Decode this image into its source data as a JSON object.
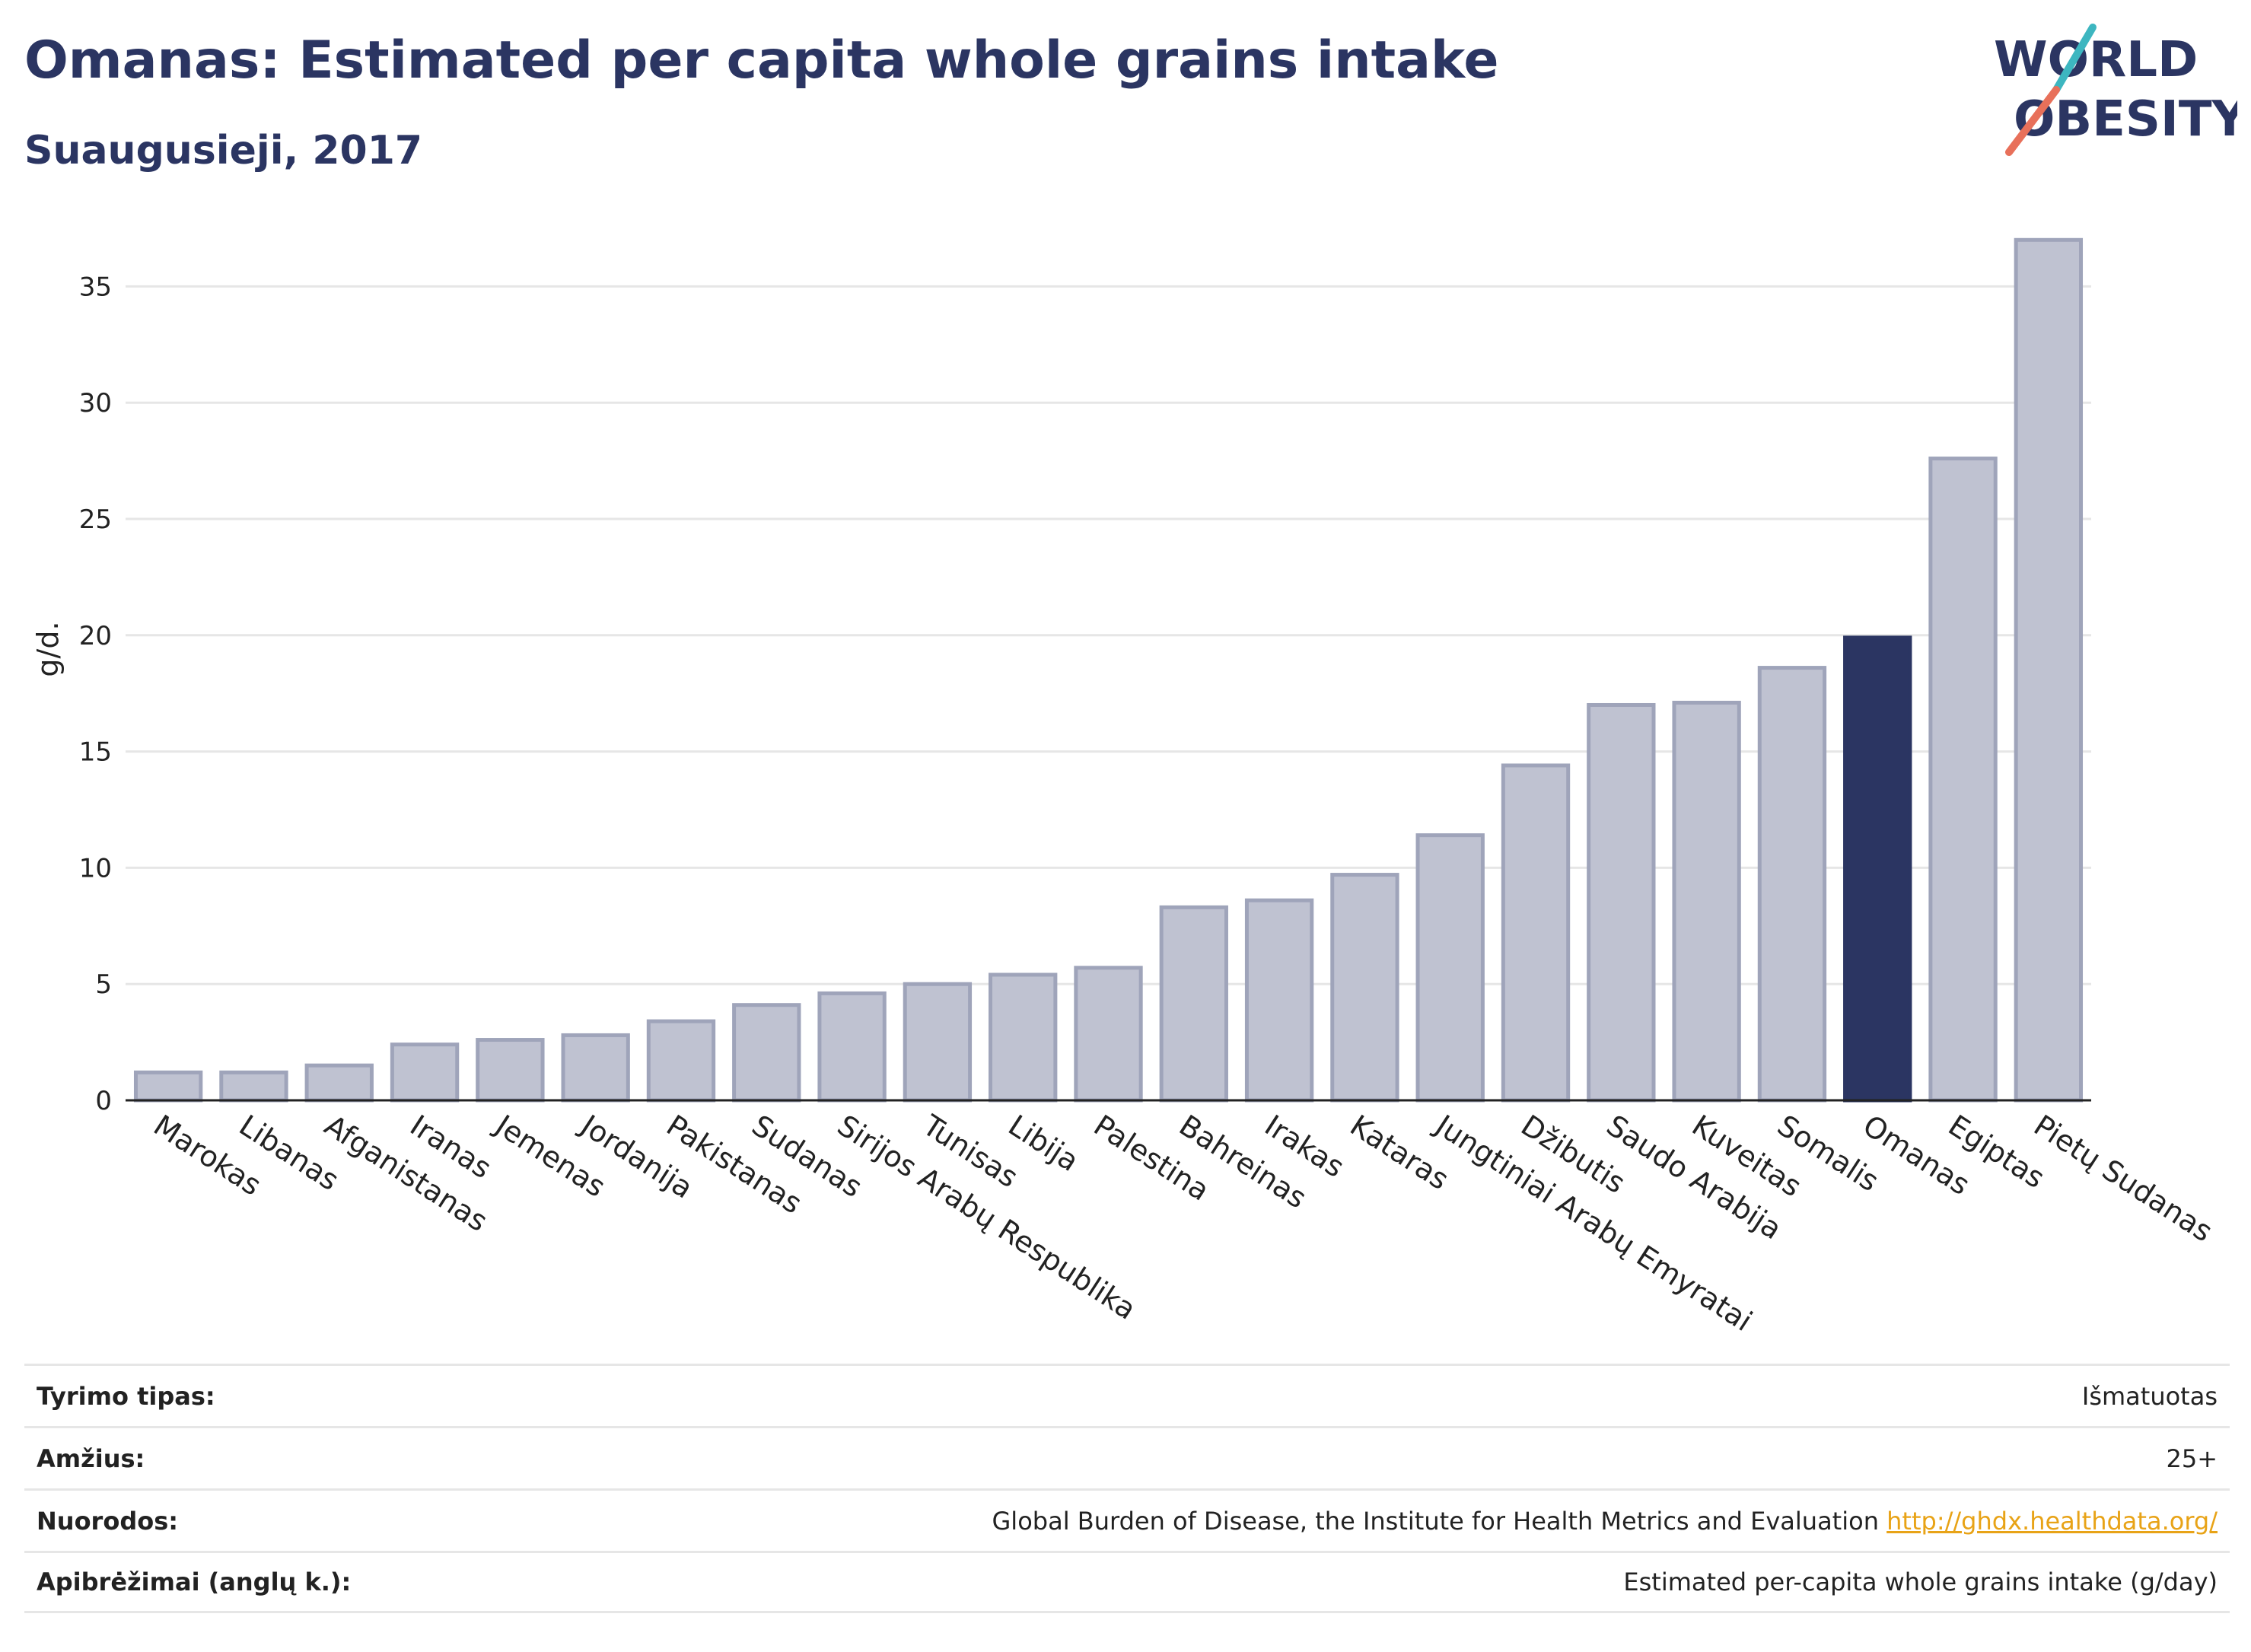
{
  "header": {
    "title": "Omanas: Estimated per capita whole grains intake",
    "subtitle": "Suaugusieji, 2017"
  },
  "logo": {
    "line1": "WORLD",
    "line2": "OBESITY",
    "accent_color": "#e8705a",
    "accent_color2": "#3db6c0"
  },
  "chart_data": {
    "type": "bar",
    "ylabel": "g/d.",
    "ylim": [
      0,
      37.5
    ],
    "yticks": [
      0,
      5,
      10,
      15,
      20,
      25,
      30,
      35
    ],
    "grid": true,
    "categories": [
      "Marokas",
      "Libanas",
      "Afganistanas",
      "Iranas",
      "Jemenas",
      "Jordanija",
      "Pakistanas",
      "Sudanas",
      "Sirijos Arabų Respublika",
      "Tunisas",
      "Libija",
      "Palestina",
      "Bahreinas",
      "Irakas",
      "Kataras",
      "Jungtiniai Arabų Emyratai",
      "Džibutis",
      "Saudo Arabija",
      "Kuveitas",
      "Somalis",
      "Omanas",
      "Egiptas",
      "Pietų Sudanas"
    ],
    "values": [
      1.2,
      1.2,
      1.5,
      2.4,
      2.6,
      2.8,
      3.4,
      4.1,
      4.6,
      5.0,
      5.4,
      5.7,
      8.3,
      8.6,
      9.7,
      11.4,
      14.4,
      17.0,
      17.1,
      18.6,
      19.9,
      27.6,
      37.0
    ],
    "highlight": "Omanas",
    "colors": {
      "bar": "#bfc2d1",
      "bar_edge": "#9fa4ba",
      "highlight": "#2b3562",
      "grid": "#e6e6e6"
    }
  },
  "info_table": [
    {
      "label": "Tyrimo tipas:",
      "value": "Išmatuotas"
    },
    {
      "label": "Amžius:",
      "value": "25+"
    },
    {
      "label": "Nuorodos:",
      "value": "Global Burden of Disease, the Institute for Health Metrics and Evaluation",
      "link": "http://ghdx.healthdata.org/"
    },
    {
      "label": "Apibrėžimai (anglų k.):",
      "value": "Estimated per-capita whole grains intake (g/day)"
    }
  ]
}
